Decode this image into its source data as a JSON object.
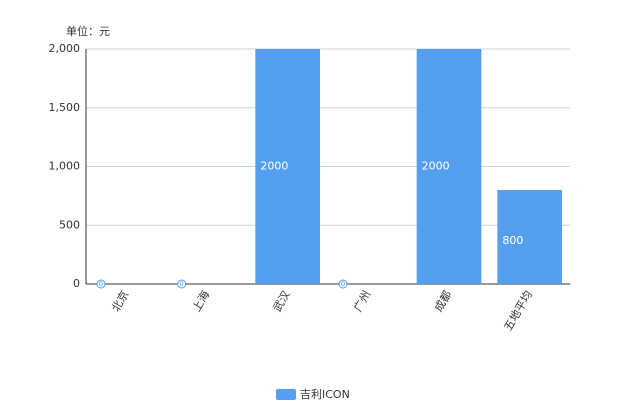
{
  "chart_data": {
    "type": "bar",
    "unit_label": "单位：元",
    "categories": [
      "北京",
      "上海",
      "武汉",
      "广州",
      "成都",
      "五地平均"
    ],
    "series": [
      {
        "name": "吉利ICON",
        "color": "#559ff0",
        "values": [
          0,
          0,
          2000,
          0,
          2000,
          800
        ]
      }
    ],
    "ylim": [
      0,
      2000
    ],
    "yticks": [
      0,
      500,
      {
        "value": 1000,
        "label": "1,000"
      },
      {
        "value": 1500,
        "label": "1,500"
      },
      {
        "value": 2000,
        "label": "2,000"
      }
    ],
    "grid": true
  }
}
